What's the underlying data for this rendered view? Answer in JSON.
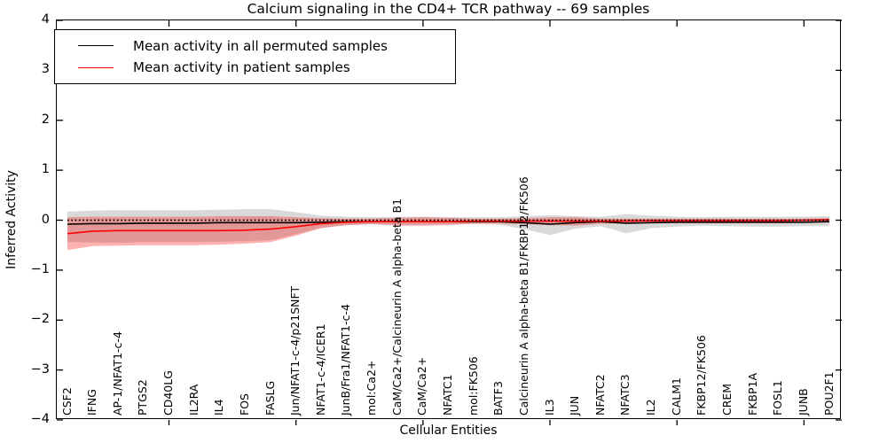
{
  "title": "Calcium signaling in the CD4+ TCR pathway -- 69 samples",
  "legend": {
    "items": [
      {
        "label": "Mean activity in all permuted samples",
        "color": "#000000"
      },
      {
        "label": "Mean activity in patient samples",
        "color": "#ff0000"
      }
    ]
  },
  "chart_data": {
    "type": "line",
    "title": "Calcium signaling in the CD4+ TCR pathway -- 69 samples",
    "xlabel": "Cellular Entities",
    "ylabel": "Inferred Activity",
    "ylim": [
      -4,
      4
    ],
    "grid": false,
    "legend_position": "upper left",
    "zero_reference_line": 0,
    "yticks": [
      {
        "value": 4,
        "label": "4"
      },
      {
        "value": 3,
        "label": "3"
      },
      {
        "value": 2,
        "label": "2"
      },
      {
        "value": 1,
        "label": "1"
      },
      {
        "value": 0,
        "label": "0"
      },
      {
        "value": -1,
        "label": "−1"
      },
      {
        "value": -2,
        "label": "−2"
      },
      {
        "value": -3,
        "label": "−3"
      },
      {
        "value": -4,
        "label": "−4"
      }
    ],
    "xtick_indices": [
      4,
      9,
      14,
      19,
      24,
      29
    ],
    "categories": [
      "CSF2",
      "IFNG",
      "AP-1/NFAT1-c-4",
      "PTGS2",
      "CD40LG",
      "IL2RA",
      "IL4",
      "FOS",
      "FASLG",
      "Jun/NFAT1-c-4/p21SNFT",
      "NFAT1-c-4/ICER1",
      "JunB/Fra1/NFAT1-c-4",
      "mol:Ca2+",
      "CaM/Ca2+/Calcineurin A alpha-beta B1",
      "CaM/Ca2+",
      "NFATC1",
      "mol:FK506",
      "BATF3",
      "Calcineurin A alpha-beta B1/FKBP12/FK506",
      "IL3",
      "JUN",
      "NFATC2",
      "NFATC3",
      "IL2",
      "CALM1",
      "FKBP12/FK506",
      "CREM",
      "FKBP1A",
      "FOSL1",
      "JUNB",
      "POU2F1"
    ],
    "series": [
      {
        "name": "Mean activity in all permuted samples",
        "color": "#000000",
        "values": [
          -0.08,
          -0.07,
          -0.07,
          -0.06,
          -0.06,
          -0.06,
          -0.05,
          -0.05,
          -0.05,
          -0.05,
          -0.04,
          -0.03,
          -0.03,
          -0.03,
          -0.03,
          -0.03,
          -0.03,
          -0.03,
          -0.05,
          -0.08,
          -0.05,
          -0.03,
          -0.06,
          -0.05,
          -0.04,
          -0.04,
          -0.04,
          -0.04,
          -0.04,
          -0.04,
          -0.03
        ]
      },
      {
        "name": "Mean activity in patient samples",
        "color": "#ff0000",
        "values": [
          -0.27,
          -0.22,
          -0.21,
          -0.21,
          -0.21,
          -0.21,
          -0.21,
          -0.2,
          -0.18,
          -0.13,
          -0.07,
          -0.04,
          -0.03,
          -0.03,
          -0.03,
          -0.03,
          -0.02,
          -0.02,
          -0.02,
          -0.02,
          -0.02,
          -0.02,
          -0.02,
          -0.01,
          -0.01,
          -0.01,
          -0.01,
          -0.01,
          -0.01,
          0.0,
          0.01
        ]
      }
    ],
    "bands": [
      {
        "name": "permuted-band",
        "color": "rgba(0,0,0,0.15)",
        "upper": [
          0.17,
          0.19,
          0.2,
          0.2,
          0.2,
          0.2,
          0.21,
          0.22,
          0.22,
          0.16,
          0.09,
          0.07,
          0.06,
          0.07,
          0.07,
          0.06,
          0.06,
          0.06,
          0.08,
          0.1,
          0.08,
          0.07,
          0.12,
          0.09,
          0.07,
          0.06,
          0.07,
          0.07,
          0.07,
          0.07,
          0.08
        ],
        "lower": [
          -0.44,
          -0.45,
          -0.45,
          -0.44,
          -0.44,
          -0.44,
          -0.43,
          -0.42,
          -0.4,
          -0.28,
          -0.15,
          -0.1,
          -0.08,
          -0.09,
          -0.09,
          -0.08,
          -0.08,
          -0.09,
          -0.18,
          -0.3,
          -0.17,
          -0.12,
          -0.26,
          -0.16,
          -0.13,
          -0.11,
          -0.12,
          -0.13,
          -0.13,
          -0.12,
          -0.12
        ]
      },
      {
        "name": "patient-band",
        "color": "rgba(255,0,0,0.30)",
        "upper": [
          0.06,
          0.07,
          0.07,
          0.07,
          0.07,
          0.07,
          0.08,
          0.08,
          0.08,
          0.06,
          0.04,
          0.03,
          0.03,
          0.05,
          0.06,
          0.05,
          0.03,
          0.03,
          0.04,
          0.06,
          0.06,
          0.03,
          0.03,
          0.03,
          0.03,
          0.03,
          0.03,
          0.03,
          0.03,
          0.03,
          0.04
        ],
        "lower": [
          -0.6,
          -0.52,
          -0.51,
          -0.5,
          -0.5,
          -0.5,
          -0.49,
          -0.47,
          -0.44,
          -0.31,
          -0.16,
          -0.1,
          -0.08,
          -0.11,
          -0.11,
          -0.1,
          -0.07,
          -0.07,
          -0.08,
          -0.1,
          -0.11,
          -0.07,
          -0.07,
          -0.06,
          -0.06,
          -0.06,
          -0.06,
          -0.06,
          -0.06,
          -0.05,
          -0.05
        ]
      }
    ]
  }
}
